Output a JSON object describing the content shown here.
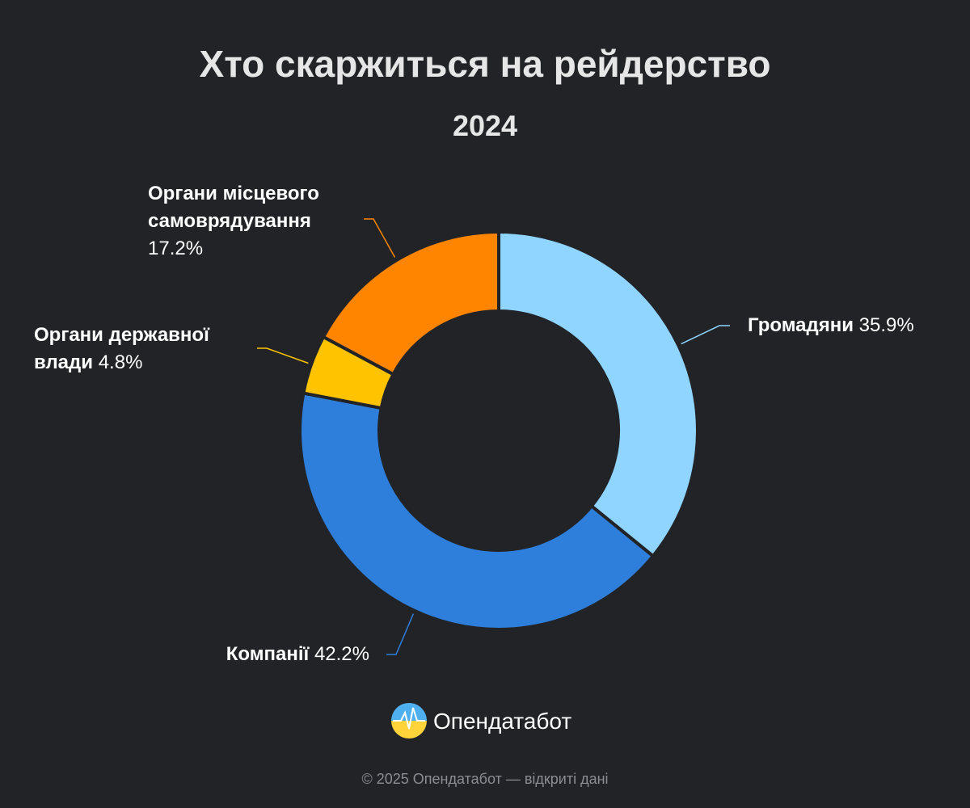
{
  "chart_data": {
    "type": "donut",
    "title": "Хто скаржиться на рейдерство",
    "subtitle": "2024",
    "categories": [
      "Громадяни",
      "Компанії",
      "Органи державної влади",
      "Органи місцевого самоврядування"
    ],
    "values": [
      35.9,
      42.2,
      4.8,
      17.2
    ],
    "value_labels": [
      "35.9%",
      "42.2%",
      "4.8%",
      "17.2%"
    ],
    "colors": [
      "#8fd5ff",
      "#2d7fdb",
      "#ffc300",
      "#ff8500"
    ]
  },
  "brand": "Опендатабот",
  "footer": "© 2025 Опендатабот — відкриті дані"
}
